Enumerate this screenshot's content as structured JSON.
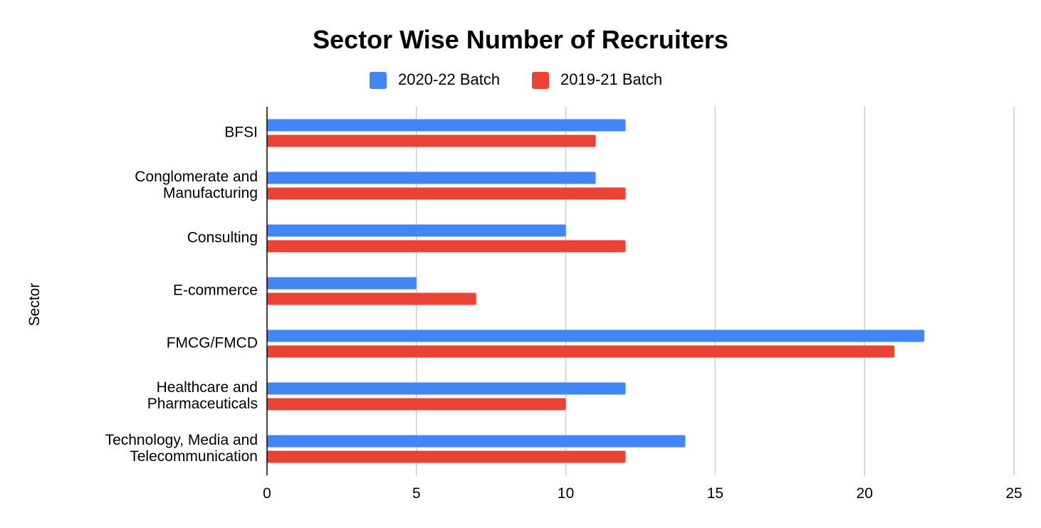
{
  "chart_data": {
    "type": "bar",
    "orientation": "horizontal",
    "title": "Sector Wise Number of Recruiters",
    "xlabel": "",
    "ylabel": "Sector",
    "categories": [
      [
        "BFSI"
      ],
      [
        "Conglomerate and",
        "Manufacturing"
      ],
      [
        "Consulting"
      ],
      [
        "E-commerce"
      ],
      [
        "FMCG/FMCD"
      ],
      [
        "Healthcare and",
        "Pharmaceuticals"
      ],
      [
        "Technology, Media and",
        "Telecommunication"
      ]
    ],
    "series": [
      {
        "name": "2020-22 Batch",
        "color": "#4285f4",
        "values": [
          12,
          11,
          10,
          5,
          22,
          12,
          14
        ]
      },
      {
        "name": "2019-21 Batch",
        "color": "#ea4335",
        "values": [
          11,
          12,
          12,
          7,
          21,
          10,
          12
        ]
      }
    ],
    "xlim": [
      0,
      25
    ],
    "xticks": [
      "0",
      "5",
      "10",
      "15",
      "20",
      "25"
    ],
    "grid": true,
    "legend_position": "top-center"
  }
}
